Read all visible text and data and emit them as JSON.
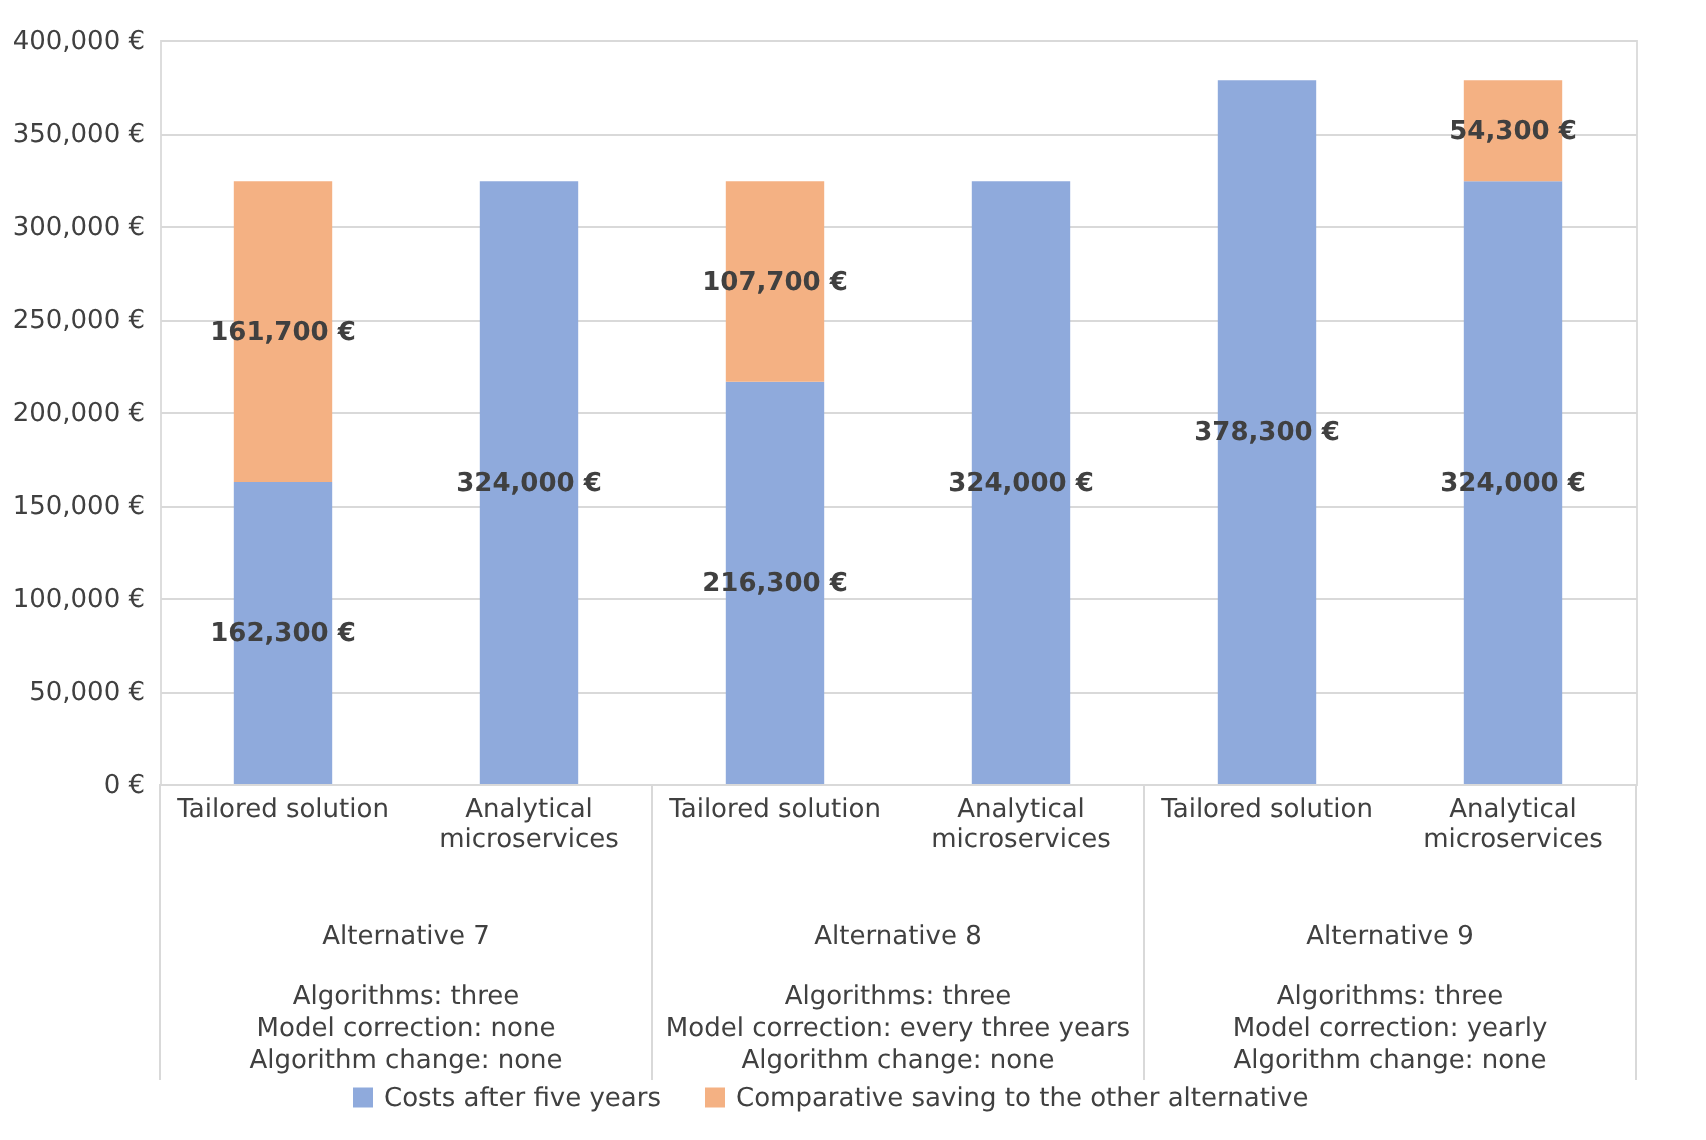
{
  "chart_data": {
    "type": "bar",
    "stacked": true,
    "categories": [
      "Tailored solution",
      "Analytical microservices",
      "Tailored solution",
      "Analytical microservices",
      "Tailored solution",
      "Analytical microservices"
    ],
    "series": [
      {
        "name": "Costs after five years",
        "color": "#8faadc",
        "values": [
          162300,
          324000,
          216300,
          324000,
          378300,
          324000
        ],
        "value_labels": [
          "162,300 €",
          "324,000 €",
          "216,300 €",
          "324,000 €",
          "378,300 €",
          "324,000 €"
        ]
      },
      {
        "name": "Comparative saving to the other alternative",
        "color": "#f4b183",
        "values": [
          161700,
          null,
          107700,
          null,
          null,
          54300
        ],
        "value_labels": [
          "161,700 €",
          null,
          "107,700 €",
          null,
          null,
          "54,300 €"
        ]
      }
    ],
    "ylim": [
      0,
      400000
    ],
    "yticks": [
      {
        "value": 0,
        "label": "0 €"
      },
      {
        "value": 50000,
        "label": "50,000 €"
      },
      {
        "value": 100000,
        "label": "100,000 €"
      },
      {
        "value": 150000,
        "label": "150,000 €"
      },
      {
        "value": 200000,
        "label": "200,000 €"
      },
      {
        "value": 250000,
        "label": "250,000 €"
      },
      {
        "value": 300000,
        "label": "300,000 €"
      },
      {
        "value": 350000,
        "label": "350,000 €"
      },
      {
        "value": 400000,
        "label": "400,000 €"
      }
    ],
    "annotations": [
      "Alternative 7",
      "Algorithms: three\nModel correction: none\nAlgorithm change: none",
      "Alternative 8",
      "Algorithms: three\nModel correction: every three years\nAlgorithm change: none",
      "Alternative 9",
      "Algorithms: three\nModel correction: yearly\nAlgorithm change: none"
    ],
    "grid": "y",
    "legend": "bottom"
  }
}
